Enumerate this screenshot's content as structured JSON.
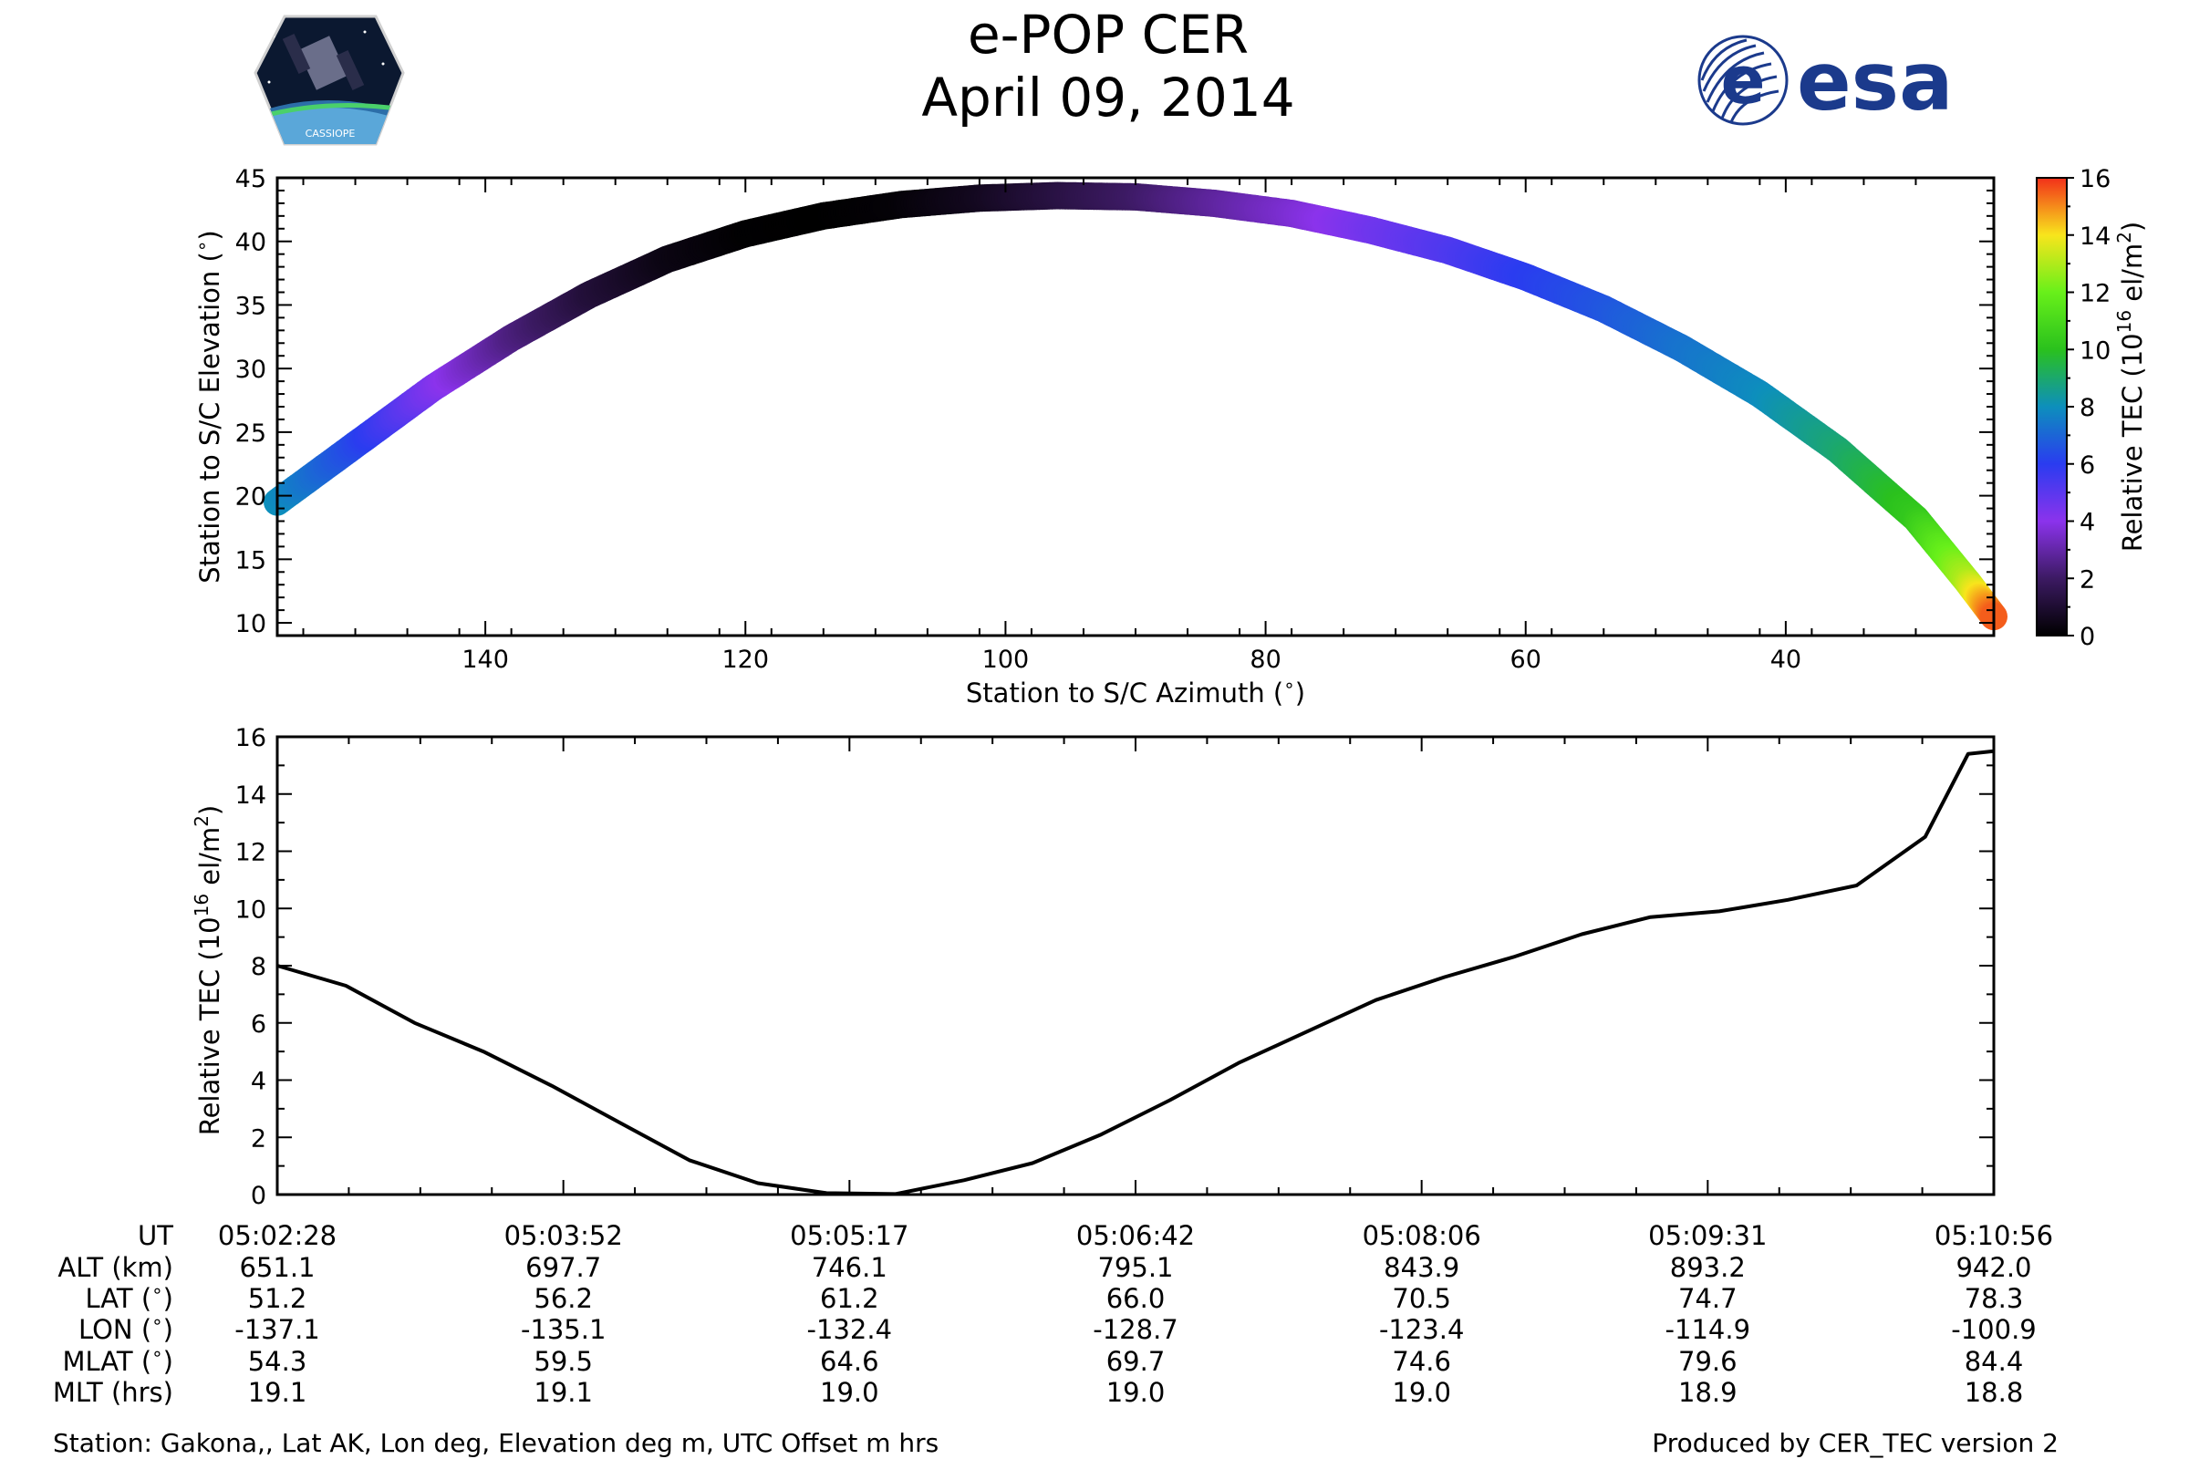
{
  "header": {
    "title": "e-POP CER",
    "date": "April 09, 2014",
    "esa_logo_text": "esa",
    "cassiope_logo_text": "CASSIOPE"
  },
  "colors": {
    "trajectory_colormap": [
      "#000000",
      "#3c1a63",
      "#8b33ec",
      "#2a3cf0",
      "#0d8fbc",
      "#2ac11d",
      "#68f01a",
      "#f8e51c",
      "#f2301a"
    ],
    "tec_line": "#000000",
    "esa_blue": "#1b3a8c"
  },
  "chart_data": [
    {
      "type": "scatter",
      "colorscale": "Relative TEC",
      "xlabel": "Station to S/C Azimuth (°)",
      "ylabel": "Station to S/C Elevation (°)",
      "colorbar_label": "Relative TEC (10^16 el/m^2)",
      "xlim": [
        156,
        24
      ],
      "ylim": [
        9,
        45
      ],
      "clim": [
        0,
        16
      ],
      "x_ticks": [
        140,
        120,
        100,
        80,
        60,
        40
      ],
      "y_ticks": [
        10,
        15,
        20,
        25,
        30,
        35,
        40,
        45
      ],
      "colorbar_ticks": [
        0,
        2,
        4,
        6,
        8,
        10,
        12,
        14,
        16
      ],
      "points": [
        [
          156,
          19.5,
          8.0
        ],
        [
          150,
          24.0,
          6.3
        ],
        [
          144,
          28.5,
          4.3
        ],
        [
          138,
          32.4,
          2.5
        ],
        [
          132,
          35.8,
          1.2
        ],
        [
          126,
          38.6,
          0.4
        ],
        [
          120,
          40.6,
          0.05
        ],
        [
          114,
          42.0,
          0.0
        ],
        [
          108,
          42.9,
          0.15
        ],
        [
          102,
          43.4,
          0.6
        ],
        [
          96,
          43.6,
          1.3
        ],
        [
          90,
          43.5,
          2.0
        ],
        [
          84,
          43.0,
          2.8
        ],
        [
          78,
          42.2,
          3.6
        ],
        [
          72,
          40.9,
          4.5
        ],
        [
          66,
          39.3,
          5.2
        ],
        [
          60,
          37.2,
          6.0
        ],
        [
          54,
          34.7,
          6.6
        ],
        [
          48,
          31.6,
          7.3
        ],
        [
          42,
          28.0,
          7.9
        ],
        [
          36,
          23.6,
          8.9
        ],
        [
          30,
          18.2,
          10.3
        ],
        [
          26,
          13.2,
          13.0
        ],
        [
          24,
          10.5,
          15.5
        ]
      ]
    },
    {
      "type": "line",
      "ylabel": "Relative TEC (10^16 el/m^2)",
      "ylim": [
        0,
        16
      ],
      "y_ticks": [
        0,
        2,
        4,
        6,
        8,
        10,
        12,
        14,
        16
      ],
      "series": [
        {
          "points": [
            [
              0,
              8.0
            ],
            [
              0.04,
              7.3
            ],
            [
              0.08,
              6.0
            ],
            [
              0.12,
              5.0
            ],
            [
              0.16,
              3.8
            ],
            [
              0.2,
              2.5
            ],
            [
              0.24,
              1.2
            ],
            [
              0.28,
              0.4
            ],
            [
              0.32,
              0.05
            ],
            [
              0.36,
              0.02
            ],
            [
              0.4,
              0.5
            ],
            [
              0.44,
              1.1
            ],
            [
              0.48,
              2.1
            ],
            [
              0.52,
              3.3
            ],
            [
              0.56,
              4.6
            ],
            [
              0.6,
              5.7
            ],
            [
              0.64,
              6.8
            ],
            [
              0.68,
              7.6
            ],
            [
              0.72,
              8.3
            ],
            [
              0.76,
              9.1
            ],
            [
              0.8,
              9.7
            ],
            [
              0.84,
              9.9
            ],
            [
              0.88,
              10.3
            ],
            [
              0.92,
              10.8
            ],
            [
              0.96,
              12.5
            ],
            [
              0.985,
              15.4
            ],
            [
              1.0,
              15.5
            ]
          ]
        }
      ]
    }
  ],
  "axis_text": {
    "elev_x_label": "Station to S/C Azimuth (",
    "elev_y_label": "Station to S/C Elevation (",
    "deg_symbol": "∘",
    "close_paren": ")",
    "tec_label_prefix": "Relative TEC (10",
    "tec_label_exp": "16",
    "tec_label_unit": " el/m",
    "tec_label_sq": "2",
    "tec_label_close": ")"
  },
  "table": {
    "row_labels": [
      "UT",
      "ALT (km)",
      "LAT (",
      "LON (",
      "MLAT (",
      "MLT (hrs)"
    ],
    "deg_rows": [
      false,
      false,
      true,
      true,
      true,
      false
    ],
    "columns": [
      [
        "05:02:28",
        "651.1",
        "51.2",
        "-137.1",
        "54.3",
        "19.1"
      ],
      [
        "05:03:52",
        "697.7",
        "56.2",
        "-135.1",
        "59.5",
        "19.1"
      ],
      [
        "05:05:17",
        "746.1",
        "61.2",
        "-132.4",
        "64.6",
        "19.0"
      ],
      [
        "05:06:42",
        "795.1",
        "66.0",
        "-128.7",
        "69.7",
        "19.0"
      ],
      [
        "05:08:06",
        "843.9",
        "70.5",
        "-123.4",
        "74.6",
        "19.0"
      ],
      [
        "05:09:31",
        "893.2",
        "74.7",
        "-114.9",
        "79.6",
        "18.9"
      ],
      [
        "05:10:56",
        "942.0",
        "78.3",
        "-100.9",
        "84.4",
        "18.8"
      ]
    ]
  },
  "footer": {
    "station": "Station: Gakona,, Lat AK, Lon deg, Elevation deg m, UTC Offset m hrs",
    "produced_by": "Produced by CER_TEC version 2"
  }
}
